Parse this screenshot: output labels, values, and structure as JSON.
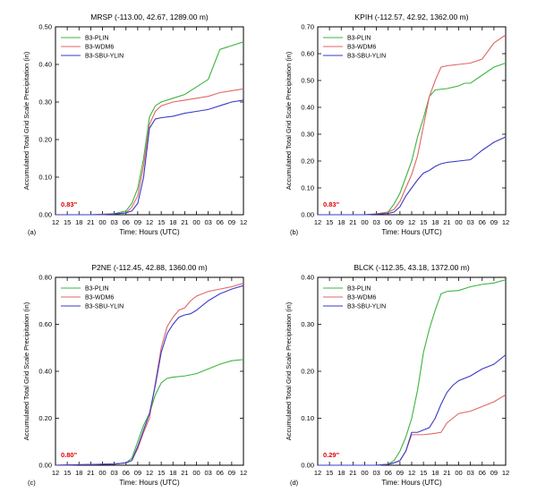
{
  "chart_data": [
    {
      "panel": "(a)",
      "type": "line",
      "title": "MRSP (-113.00, 42.67, 1289.00 m)",
      "xlabel": "Time: Hours (UTC)",
      "ylabel": "Accumulated Total Grid Scale Precipitation (in)",
      "x_ticks": [
        "12",
        "15",
        "18",
        "21",
        "00",
        "03",
        "06",
        "09",
        "12",
        "15",
        "18",
        "21",
        "00",
        "03",
        "06",
        "09",
        "12"
      ],
      "x_range_hours": [
        0,
        48
      ],
      "ylim": [
        0,
        0.5
      ],
      "y_ticks": [
        "0.00",
        "0.10",
        "0.20",
        "0.30",
        "0.40",
        "0.50"
      ],
      "observed_label": "0.83\"",
      "legend_position": "top-left",
      "series": [
        {
          "name": "B3-PLIN",
          "color": "#3cb43c",
          "points": [
            [
              0,
              0
            ],
            [
              9,
              0
            ],
            [
              15,
              0.003
            ],
            [
              18,
              0.01
            ],
            [
              19.5,
              0.03
            ],
            [
              21,
              0.07
            ],
            [
              22.5,
              0.15
            ],
            [
              24,
              0.26
            ],
            [
              25.5,
              0.29
            ],
            [
              27,
              0.3
            ],
            [
              30,
              0.31
            ],
            [
              33,
              0.32
            ],
            [
              36,
              0.34
            ],
            [
              39,
              0.36
            ],
            [
              40.5,
              0.4
            ],
            [
              42,
              0.44
            ],
            [
              45,
              0.45
            ],
            [
              48,
              0.46
            ]
          ]
        },
        {
          "name": "B3-WDM6",
          "color": "#e06666",
          "points": [
            [
              0,
              0
            ],
            [
              9,
              0
            ],
            [
              15,
              0.002
            ],
            [
              18,
              0.005
            ],
            [
              19.5,
              0.02
            ],
            [
              21,
              0.05
            ],
            [
              22.5,
              0.13
            ],
            [
              24,
              0.24
            ],
            [
              25.5,
              0.275
            ],
            [
              27,
              0.29
            ],
            [
              30,
              0.3
            ],
            [
              33,
              0.305
            ],
            [
              36,
              0.31
            ],
            [
              39,
              0.315
            ],
            [
              42,
              0.325
            ],
            [
              45,
              0.33
            ],
            [
              48,
              0.335
            ]
          ]
        },
        {
          "name": "B3-SBU-YLIN",
          "color": "#3a3ac8",
          "points": [
            [
              0,
              0
            ],
            [
              12,
              0
            ],
            [
              15,
              0.002
            ],
            [
              18,
              0.005
            ],
            [
              19.5,
              0.01
            ],
            [
              21,
              0.03
            ],
            [
              22.5,
              0.1
            ],
            [
              24,
              0.23
            ],
            [
              25.5,
              0.255
            ],
            [
              27,
              0.258
            ],
            [
              30,
              0.262
            ],
            [
              33,
              0.27
            ],
            [
              36,
              0.275
            ],
            [
              39,
              0.28
            ],
            [
              42,
              0.29
            ],
            [
              45,
              0.3
            ],
            [
              48,
              0.305
            ]
          ]
        }
      ]
    },
    {
      "panel": "(b)",
      "type": "line",
      "title": "KPIH (-112.57, 42.92, 1362.00 m)",
      "xlabel": "Time: Hours (UTC)",
      "ylabel": "Accumulated Total Grid Scale Precipitation (in)",
      "x_ticks": [
        "12",
        "15",
        "18",
        "21",
        "00",
        "03",
        "06",
        "09",
        "12",
        "15",
        "18",
        "21",
        "00",
        "03",
        "06",
        "09",
        "12"
      ],
      "x_range_hours": [
        0,
        48
      ],
      "ylim": [
        0,
        0.7
      ],
      "y_ticks": [
        "0.00",
        "0.10",
        "0.20",
        "0.30",
        "0.40",
        "0.50",
        "0.60",
        "0.70"
      ],
      "observed_label": "0.83\"",
      "legend_position": "top-left",
      "series": [
        {
          "name": "B3-PLIN",
          "color": "#3cb43c",
          "points": [
            [
              0,
              0
            ],
            [
              12,
              0
            ],
            [
              15,
              0.003
            ],
            [
              18,
              0.01
            ],
            [
              19.5,
              0.04
            ],
            [
              21,
              0.08
            ],
            [
              22.5,
              0.14
            ],
            [
              24,
              0.2
            ],
            [
              25.5,
              0.29
            ],
            [
              27,
              0.36
            ],
            [
              28.5,
              0.44
            ],
            [
              30,
              0.465
            ],
            [
              33,
              0.47
            ],
            [
              36,
              0.48
            ],
            [
              37.5,
              0.49
            ],
            [
              39,
              0.49
            ],
            [
              42,
              0.52
            ],
            [
              45,
              0.55
            ],
            [
              48,
              0.565
            ]
          ]
        },
        {
          "name": "B3-WDM6",
          "color": "#e06666",
          "points": [
            [
              0,
              0
            ],
            [
              12,
              0
            ],
            [
              15,
              0.003
            ],
            [
              18,
              0.01
            ],
            [
              19.5,
              0.02
            ],
            [
              21,
              0.05
            ],
            [
              22.5,
              0.1
            ],
            [
              24,
              0.15
            ],
            [
              25.5,
              0.22
            ],
            [
              27,
              0.33
            ],
            [
              28.5,
              0.44
            ],
            [
              30,
              0.5
            ],
            [
              31.5,
              0.55
            ],
            [
              33,
              0.555
            ],
            [
              36,
              0.56
            ],
            [
              39,
              0.565
            ],
            [
              42,
              0.58
            ],
            [
              45,
              0.64
            ],
            [
              48,
              0.67
            ]
          ]
        },
        {
          "name": "B3-SBU-YLIN",
          "color": "#3a3ac8",
          "points": [
            [
              0,
              0
            ],
            [
              12,
              0
            ],
            [
              15,
              0.002
            ],
            [
              18,
              0.005
            ],
            [
              19.5,
              0.01
            ],
            [
              21,
              0.03
            ],
            [
              22.5,
              0.07
            ],
            [
              24,
              0.1
            ],
            [
              25.5,
              0.13
            ],
            [
              27,
              0.155
            ],
            [
              28.5,
              0.165
            ],
            [
              30,
              0.18
            ],
            [
              31.5,
              0.19
            ],
            [
              33,
              0.195
            ],
            [
              36,
              0.2
            ],
            [
              39,
              0.205
            ],
            [
              42,
              0.24
            ],
            [
              45,
              0.27
            ],
            [
              48,
              0.29
            ]
          ]
        }
      ]
    },
    {
      "panel": "(c)",
      "type": "line",
      "title": "P2NE (-112.45, 42.88, 1360.00 m)",
      "xlabel": "Time: Hours (UTC)",
      "ylabel": "Accumulated Total Grid Scale Precipitation (in)",
      "x_ticks": [
        "12",
        "15",
        "18",
        "21",
        "00",
        "03",
        "06",
        "09",
        "12",
        "15",
        "18",
        "21",
        "00",
        "03",
        "06",
        "09",
        "12"
      ],
      "x_range_hours": [
        0,
        48
      ],
      "ylim": [
        0,
        0.8
      ],
      "y_ticks": [
        "0.00",
        "0.20",
        "0.40",
        "0.60",
        "0.80"
      ],
      "observed_label": "0.80\"",
      "legend_position": "top-left",
      "series": [
        {
          "name": "B3-PLIN",
          "color": "#3cb43c",
          "points": [
            [
              0,
              0
            ],
            [
              9,
              0.003
            ],
            [
              15,
              0.005
            ],
            [
              18,
              0.01
            ],
            [
              19.5,
              0.03
            ],
            [
              21,
              0.1
            ],
            [
              22.5,
              0.17
            ],
            [
              24,
              0.22
            ],
            [
              25.5,
              0.3
            ],
            [
              27,
              0.35
            ],
            [
              28.5,
              0.37
            ],
            [
              30,
              0.375
            ],
            [
              33,
              0.38
            ],
            [
              36,
              0.39
            ],
            [
              39,
              0.41
            ],
            [
              42,
              0.43
            ],
            [
              45,
              0.445
            ],
            [
              48,
              0.45
            ]
          ]
        },
        {
          "name": "B3-WDM6",
          "color": "#e06666",
          "points": [
            [
              0,
              0
            ],
            [
              9,
              0.003
            ],
            [
              15,
              0.005
            ],
            [
              18,
              0.01
            ],
            [
              19.5,
              0.02
            ],
            [
              21,
              0.07
            ],
            [
              22.5,
              0.14
            ],
            [
              24,
              0.2
            ],
            [
              25.5,
              0.35
            ],
            [
              27,
              0.5
            ],
            [
              28.5,
              0.59
            ],
            [
              30,
              0.63
            ],
            [
              31.5,
              0.66
            ],
            [
              33,
              0.67
            ],
            [
              34.5,
              0.7
            ],
            [
              36,
              0.72
            ],
            [
              39,
              0.74
            ],
            [
              42,
              0.75
            ],
            [
              45,
              0.76
            ],
            [
              48,
              0.775
            ]
          ]
        },
        {
          "name": "B3-SBU-YLIN",
          "color": "#3a3ac8",
          "points": [
            [
              0,
              0
            ],
            [
              9,
              0.003
            ],
            [
              15,
              0.005
            ],
            [
              18,
              0.01
            ],
            [
              19.5,
              0.02
            ],
            [
              21,
              0.08
            ],
            [
              22.5,
              0.15
            ],
            [
              24,
              0.22
            ],
            [
              25.5,
              0.34
            ],
            [
              27,
              0.48
            ],
            [
              28.5,
              0.56
            ],
            [
              30,
              0.6
            ],
            [
              31.5,
              0.63
            ],
            [
              33,
              0.64
            ],
            [
              34.5,
              0.645
            ],
            [
              36,
              0.66
            ],
            [
              39,
              0.7
            ],
            [
              42,
              0.73
            ],
            [
              45,
              0.75
            ],
            [
              48,
              0.765
            ]
          ]
        }
      ]
    },
    {
      "panel": "(d)",
      "type": "line",
      "title": "BLCK (-112.35, 43.18, 1372.00 m)",
      "xlabel": "Time: Hours (UTC)",
      "ylabel": "Accumulated Total Grid Scale Precipitation (in)",
      "x_ticks": [
        "12",
        "15",
        "18",
        "21",
        "00",
        "03",
        "06",
        "09",
        "12",
        "15",
        "18",
        "21",
        "00",
        "03",
        "06",
        "09",
        "12"
      ],
      "x_range_hours": [
        0,
        48
      ],
      "ylim": [
        0,
        0.4
      ],
      "y_ticks": [
        "0.00",
        "0.10",
        "0.20",
        "0.30",
        "0.40"
      ],
      "observed_label": "0.29\"",
      "legend_position": "top-left",
      "series": [
        {
          "name": "B3-PLIN",
          "color": "#3cb43c",
          "points": [
            [
              0,
              0
            ],
            [
              15,
              0
            ],
            [
              18,
              0.002
            ],
            [
              19.5,
              0.01
            ],
            [
              21,
              0.03
            ],
            [
              22.5,
              0.06
            ],
            [
              24,
              0.1
            ],
            [
              25.5,
              0.16
            ],
            [
              27,
              0.24
            ],
            [
              28.5,
              0.29
            ],
            [
              30,
              0.33
            ],
            [
              31.5,
              0.365
            ],
            [
              33,
              0.37
            ],
            [
              36,
              0.372
            ],
            [
              39,
              0.38
            ],
            [
              42,
              0.385
            ],
            [
              45,
              0.388
            ],
            [
              48,
              0.395
            ]
          ]
        },
        {
          "name": "B3-WDM6",
          "color": "#e06666",
          "points": [
            [
              0,
              0
            ],
            [
              15,
              0
            ],
            [
              18,
              0.002
            ],
            [
              19.5,
              0.005
            ],
            [
              21,
              0.01
            ],
            [
              22.5,
              0.03
            ],
            [
              24,
              0.065
            ],
            [
              25.5,
              0.065
            ],
            [
              27,
              0.065
            ],
            [
              30,
              0.068
            ],
            [
              31.5,
              0.07
            ],
            [
              33,
              0.09
            ],
            [
              34.5,
              0.1
            ],
            [
              36,
              0.11
            ],
            [
              39,
              0.115
            ],
            [
              42,
              0.125
            ],
            [
              45,
              0.135
            ],
            [
              48,
              0.15
            ]
          ]
        },
        {
          "name": "B3-SBU-YLIN",
          "color": "#3a3ac8",
          "points": [
            [
              0,
              0
            ],
            [
              15,
              0
            ],
            [
              18,
              0.002
            ],
            [
              19.5,
              0.005
            ],
            [
              21,
              0.01
            ],
            [
              22.5,
              0.03
            ],
            [
              24,
              0.07
            ],
            [
              25.5,
              0.07
            ],
            [
              27,
              0.075
            ],
            [
              28.5,
              0.08
            ],
            [
              30,
              0.1
            ],
            [
              31.5,
              0.13
            ],
            [
              33,
              0.155
            ],
            [
              34.5,
              0.17
            ],
            [
              36,
              0.18
            ],
            [
              39,
              0.19
            ],
            [
              42,
              0.205
            ],
            [
              45,
              0.215
            ],
            [
              48,
              0.235
            ]
          ]
        }
      ]
    }
  ]
}
